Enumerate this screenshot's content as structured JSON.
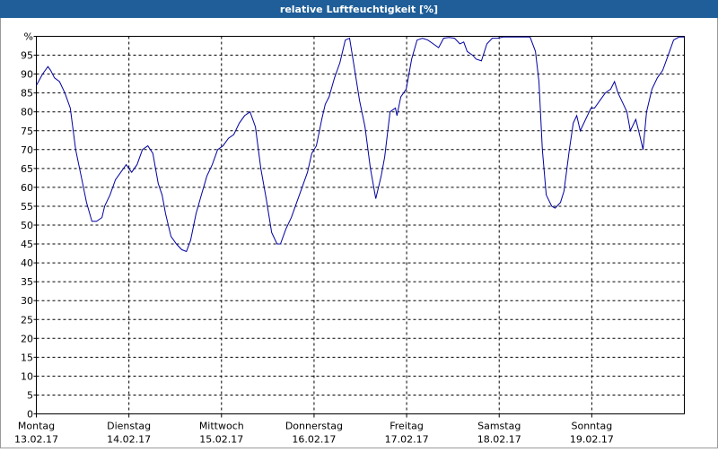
{
  "chart_data": {
    "type": "line",
    "title": "relative Luftfeuchtigkeit [%]",
    "x": [
      0,
      1.6,
      3.0,
      3.7,
      4.7,
      6.0,
      7.4,
      8.8,
      10.2,
      11.6,
      13.0,
      14.4,
      15.6,
      17.0,
      17.7,
      19.1,
      20.5,
      21.9,
      23.3,
      24.7,
      26.1,
      27.5,
      28.9,
      30.2,
      31.6,
      32.6,
      33.5,
      34.9,
      36.3,
      37.7,
      38.9,
      40.0,
      41.4,
      42.8,
      44.2,
      45.6,
      47.0,
      48.4,
      49.8,
      51.2,
      52.6,
      54.0,
      55.4,
      56.8,
      58.2,
      59.6,
      61.0,
      62.4,
      63.3,
      64.7,
      66.1,
      67.5,
      68.9,
      70.3,
      71.4,
      72.6,
      74.0,
      74.9,
      75.9,
      77.3,
      78.7,
      80.1,
      81.2,
      82.4,
      83.8,
      85.2,
      86.6,
      88.0,
      89.4,
      90.3,
      91.7,
      93.1,
      93.5,
      94.5,
      95.9,
      97.3,
      98.7,
      100.1,
      101.5,
      102.9,
      104.3,
      105.6,
      107.0,
      108.4,
      109.8,
      110.8,
      111.7,
      113.1,
      114.0,
      115.4,
      116.8,
      118.2,
      119.6,
      121.0,
      128.0,
      129.4,
      130.3,
      131.2,
      132.2,
      133.6,
      134.5,
      135.9,
      136.8,
      138.2,
      139.2,
      140.1,
      141.0,
      142.4,
      143.8,
      144.7,
      146.1,
      147.5,
      148.9,
      149.9,
      150.8,
      152.2,
      153.1,
      154.0,
      155.4,
      156.4,
      157.3,
      158.2,
      159.6,
      161.0,
      162.4,
      163.8,
      165.2,
      166.6,
      168.0
    ],
    "series": [
      {
        "color": "#0000a0",
        "values": [
          87,
          90,
          92,
          91,
          89,
          88,
          85,
          81,
          70,
          63,
          56,
          51,
          51,
          52,
          55,
          58,
          62,
          64,
          66,
          64,
          66,
          70,
          71,
          69,
          61,
          58,
          53,
          47,
          45,
          43.5,
          43,
          46,
          53,
          58,
          63,
          66,
          70,
          71,
          73,
          74,
          77,
          79,
          80,
          76,
          65,
          57,
          48,
          45,
          45,
          49,
          52,
          56,
          60,
          64,
          69,
          71,
          78,
          82,
          84,
          89,
          93,
          99,
          99.5,
          92,
          83,
          76,
          65,
          57,
          63,
          68,
          80,
          81,
          79,
          84,
          86,
          94,
          99,
          99.5,
          99,
          98,
          97,
          99.5,
          99.7,
          99.5,
          98,
          98.5,
          96,
          95,
          94,
          93.5,
          98,
          99.5,
          99.5,
          99.8,
          99.8,
          96,
          88,
          70,
          58,
          55,
          54.5,
          56,
          59,
          70,
          77,
          79,
          75,
          78,
          81,
          81,
          83,
          85,
          86,
          88,
          85,
          82,
          80,
          75,
          78,
          74,
          70,
          80,
          86,
          89,
          91,
          95,
          99,
          99.8,
          99.8
        ]
      }
    ],
    "xlim": [
      0,
      168
    ],
    "xticks": [
      {
        "value": 0,
        "label": [
          "Montag",
          "13.02.17"
        ]
      },
      {
        "value": 24,
        "label": [
          "Dienstag",
          "14.02.17"
        ]
      },
      {
        "value": 48,
        "label": [
          "Mittwoch",
          "15.02.17"
        ]
      },
      {
        "value": 72,
        "label": [
          "Donnerstag",
          "16.02.17"
        ]
      },
      {
        "value": 96,
        "label": [
          "Freitag",
          "17.02.17"
        ]
      },
      {
        "value": 120,
        "label": [
          "Samstag",
          "18.02.17"
        ]
      },
      {
        "value": 144,
        "label": [
          "Sonntag",
          "19.02.17"
        ]
      }
    ],
    "ylim": [
      0,
      100
    ],
    "yticks": [
      0,
      5,
      10,
      15,
      20,
      25,
      30,
      35,
      40,
      45,
      50,
      55,
      60,
      65,
      70,
      75,
      80,
      85,
      90,
      95,
      {
        "value": 100,
        "label": "%"
      }
    ],
    "grid": true
  }
}
